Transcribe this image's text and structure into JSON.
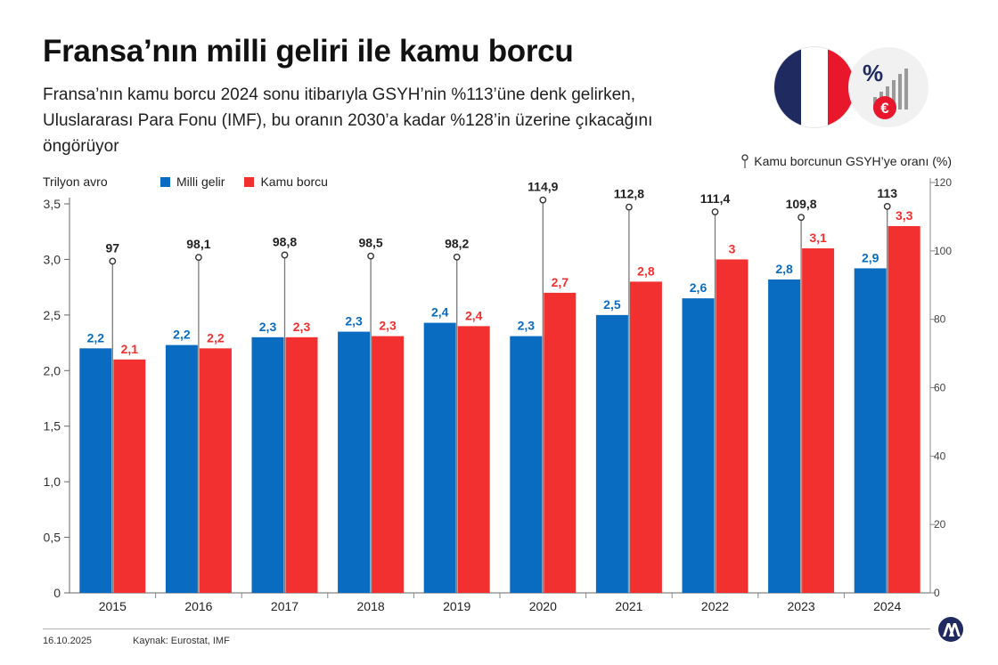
{
  "header": {
    "title": "Fransa’nın milli geliri ile kamu borcu",
    "subtitle": "Fransa’nın kamu borcu 2024 sonu itibarıyla GSYH’nin %113’üne denk gelirken, Uluslararası Para Fonu (IMF), bu oranın 2030’a kadar %128’in üzerine çıkacağını öngörüyor"
  },
  "footer": {
    "date": "16.10.2025",
    "source": "Kaynak: Eurostat, IMF"
  },
  "icons": {
    "flag": "france-flag-icon",
    "finance": "percent-euro-chart-icon",
    "logo": "aa-logo-icon"
  },
  "colors": {
    "milli_gelir": "#0a6cc0",
    "kamu_borcu": "#f1302f",
    "ratio_line": "#8a8a8a",
    "flag_blue": "#1f2a60",
    "flag_red": "#e8172b"
  },
  "chart_data": {
    "type": "bar",
    "categories": [
      "2015",
      "2016",
      "2017",
      "2018",
      "2019",
      "2020",
      "2021",
      "2022",
      "2023",
      "2024"
    ],
    "ylabel": "Trilyon avro",
    "ylim": [
      0,
      3.5
    ],
    "yticks": [
      "0",
      "0,5",
      "1,0",
      "1,5",
      "2,0",
      "2,5",
      "3,0",
      "3,5"
    ],
    "y2label": "Kamu borcunun GSYH’ye oranı (%)",
    "y2lim": [
      0,
      120
    ],
    "y2ticks": [
      "0",
      "20",
      "40",
      "60",
      "80",
      "100",
      "120"
    ],
    "series": [
      {
        "name": "Milli gelir",
        "values": [
          2.2,
          2.23,
          2.3,
          2.35,
          2.43,
          2.31,
          2.5,
          2.65,
          2.82,
          2.92
        ],
        "labels": [
          "2,2",
          "2,2",
          "2,3",
          "2,3",
          "2,4",
          "2,3",
          "2,5",
          "2,6",
          "2,8",
          "2,9"
        ]
      },
      {
        "name": "Kamu borcu",
        "values": [
          2.1,
          2.2,
          2.3,
          2.31,
          2.4,
          2.7,
          2.8,
          3.0,
          3.1,
          3.3
        ],
        "labels": [
          "2,1",
          "2,2",
          "2,3",
          "2,3",
          "2,4",
          "2,7",
          "2,8",
          "3",
          "3,1",
          "3,3"
        ]
      },
      {
        "name": "Kamu borcunun GSYH’ye oranı (%)",
        "axis": "right",
        "type": "pin",
        "values": [
          97,
          98.1,
          98.8,
          98.5,
          98.2,
          114.9,
          112.8,
          111.4,
          109.8,
          113
        ],
        "labels": [
          "97",
          "98,1",
          "98,8",
          "98,5",
          "98,2",
          "114,9",
          "112,8",
          "111,4",
          "109,8",
          "113"
        ]
      }
    ],
    "grid": false,
    "legend": "top-left"
  }
}
